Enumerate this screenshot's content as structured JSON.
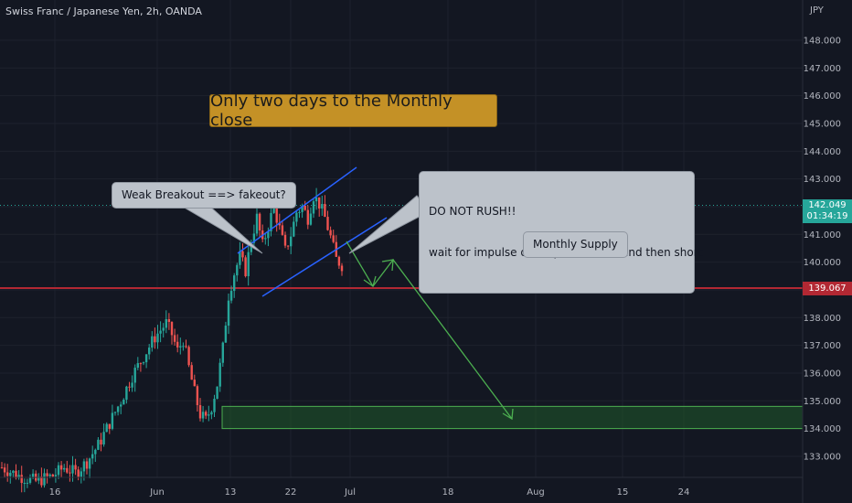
{
  "header": {
    "title": "Swiss Franc / Japanese Yen, 2h, OANDA"
  },
  "axis": {
    "currency": "JPY"
  },
  "annotations": {
    "banner": "Only two days to the Monthly close",
    "weak_breakout": "Weak Breakout ==> fakeout?",
    "do_not_rush_title": "DO NOT RUSH!!",
    "do_not_rush_body": "wait for impulse down price action and then short",
    "monthly_supply": "Monthly Supply"
  },
  "price_tags": {
    "current": "142.049",
    "countdown": "01:34:19",
    "level": "139.067"
  },
  "colors": {
    "background": "#131722",
    "bull": "#26a69a",
    "bear": "#ef5350",
    "level_line": "#b22833",
    "trend_lines": "#2962ff",
    "projection": "#4caf50",
    "zone_fill": "#1f5a2a",
    "banner_bg": "#c49126",
    "callout_bg": "#bcc2ca"
  },
  "chart_data": {
    "type": "candlestick",
    "title": "Swiss Franc / Japanese Yen, 2h, OANDA",
    "y_axis_unit": "JPY",
    "ylim": [
      132.4,
      148.5
    ],
    "y_ticks": [
      "148.000",
      "147.000",
      "146.000",
      "145.000",
      "144.000",
      "143.000",
      "142.000",
      "141.000",
      "140.000",
      "139.000",
      "138.000",
      "137.000",
      "136.000",
      "135.000",
      "134.000",
      "133.000"
    ],
    "x_ticks": [
      "16",
      "Jun",
      "13",
      "22",
      "Jul",
      "18",
      "Aug",
      "15",
      "24"
    ],
    "price_path": [
      [
        0,
        132.6
      ],
      [
        3,
        132.3
      ],
      [
        6,
        132.1
      ],
      [
        9,
        132.3
      ],
      [
        11,
        132.6
      ],
      [
        13,
        132.4
      ],
      [
        15,
        132.8
      ],
      [
        17,
        133.4
      ],
      [
        19,
        134.2
      ],
      [
        21,
        135.0
      ],
      [
        23,
        135.9
      ],
      [
        25,
        136.6
      ],
      [
        27,
        137.3
      ],
      [
        29,
        137.8
      ],
      [
        30,
        137.4
      ],
      [
        31,
        136.8
      ],
      [
        32,
        137.2
      ],
      [
        33,
        136.2
      ],
      [
        34,
        135.3
      ],
      [
        35,
        134.5
      ],
      [
        36,
        134.3
      ],
      [
        37,
        134.8
      ],
      [
        38,
        135.6
      ],
      [
        39,
        136.9
      ],
      [
        40,
        138.8
      ],
      [
        41,
        139.6
      ],
      [
        42,
        140.2
      ],
      [
        43,
        139.7
      ],
      [
        44,
        140.8
      ],
      [
        45,
        141.6
      ],
      [
        46,
        140.6
      ],
      [
        47,
        141.3
      ],
      [
        48,
        142.0
      ],
      [
        49,
        141.2
      ],
      [
        50,
        140.4
      ],
      [
        51,
        141.0
      ],
      [
        52,
        141.8
      ],
      [
        53,
        142.0
      ],
      [
        54,
        141.6
      ],
      [
        55,
        142.4
      ],
      [
        56,
        142.1
      ],
      [
        57,
        141.6
      ],
      [
        58,
        140.9
      ],
      [
        59,
        140.1
      ],
      [
        60,
        139.9
      ]
    ],
    "key_level": 139.067,
    "last_price": 142.049,
    "demand_zone": [
      134.0,
      134.8
    ],
    "trend_channel": {
      "upper": [
        [
          138,
          140.8
        ],
        [
          160,
          143.4
        ]
      ],
      "lower": [
        [
          135,
          139.8
        ],
        [
          165,
          141.6
        ]
      ]
    },
    "projection_path": [
      [
        "Jul -2d",
        140.7
      ],
      [
        "Jul +1d",
        139.0
      ],
      [
        "Jul +4d",
        140.1
      ],
      [
        "Jul +30d",
        134.5
      ]
    ]
  }
}
